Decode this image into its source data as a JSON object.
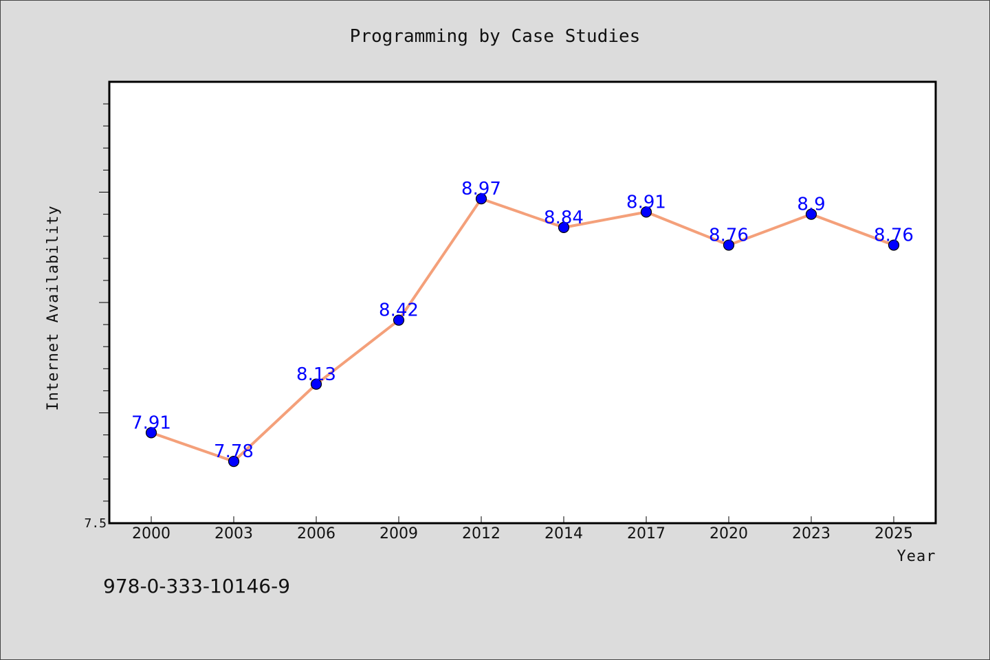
{
  "chart_data": {
    "type": "line",
    "title": "Programming by Case Studies",
    "xlabel": "Year",
    "ylabel": "Internet Availability",
    "categories": [
      "2000",
      "2003",
      "2006",
      "2009",
      "2012",
      "2014",
      "2017",
      "2020",
      "2023",
      "2025"
    ],
    "series": [
      {
        "values": [
          7.91,
          7.78,
          8.13,
          8.42,
          8.97,
          8.84,
          8.91,
          8.76,
          8.9,
          8.76
        ],
        "data_labels": [
          "7.91",
          "7.78",
          "8.13",
          "8.42",
          "8.97",
          "8.84",
          "8.91",
          "8.76",
          "8.9",
          "8.76"
        ]
      }
    ],
    "ylim": [
      7.5,
      9.5
    ],
    "y_tick_labels": [
      {
        "value": 7.5,
        "label": "7.5"
      }
    ],
    "y_minor_step": 0.1,
    "grid": false,
    "legend": "none",
    "colors": {
      "line": "#f4a07a",
      "marker": "#0000ff",
      "label": "#0000ff",
      "plot_bg": "#ffffff",
      "page_bg": "#dcdcdc"
    }
  },
  "footer": {
    "isbn": "978-0-333-10146-9"
  }
}
